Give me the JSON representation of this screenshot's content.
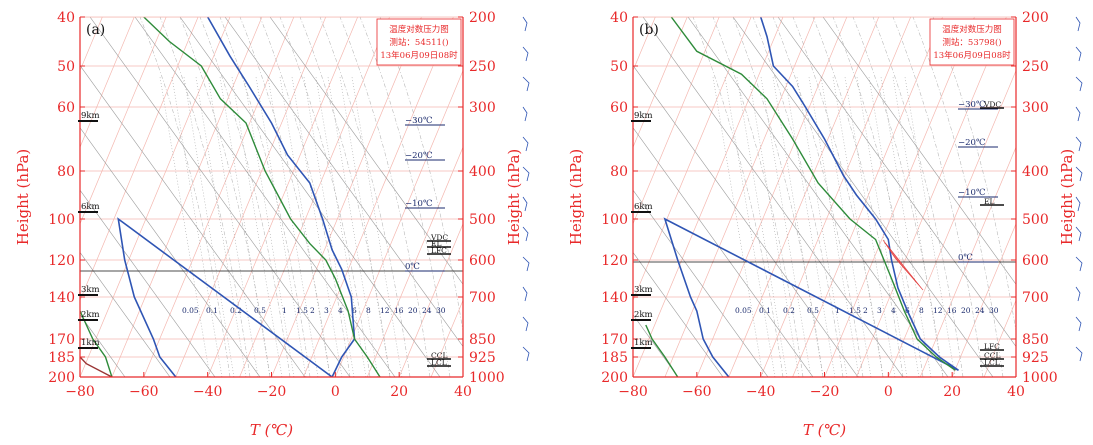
{
  "colors": {
    "axis": "#e8292a",
    "grid": "#f4b8b0",
    "temp": "#2f55b4",
    "dew": "#2e8b3a",
    "dry": "#9a3434",
    "moist": "#b8b8b8",
    "mixing": "#9a9a9a",
    "cape": "#e23b3b",
    "label_dark": "#1a2a6c",
    "black": "#111111"
  },
  "chart_data": [
    {
      "type": "line",
      "panel_label": "(a)",
      "info_box": [
        "温度对数压力图",
        "测站：54511()",
        "13年06月09日08时"
      ],
      "xlabel": "T (℃)",
      "ylabel_left": "Height (hPa)",
      "ylabel_right": "Height (hPa)",
      "xlim": [
        -80,
        40
      ],
      "ylim": [
        200,
        40
      ],
      "x_ticks": [
        "−80",
        "−60",
        "−40",
        "−20",
        "0",
        "20",
        "40"
      ],
      "y_ticks_left": [
        "40",
        "50",
        "60",
        "80",
        "100",
        "120",
        "140",
        "170",
        "185",
        "200"
      ],
      "y_ticks_right": [
        "200",
        "250",
        "300",
        "400",
        "500",
        "600",
        "700",
        "850",
        "925",
        "1000"
      ],
      "km_labels": [
        "9km",
        "6km",
        "3km",
        "2km",
        "1km"
      ],
      "iso_temp_labels": [
        "−30℃",
        "−20℃",
        "−10℃",
        "0℃"
      ],
      "level_labels": [
        "VDC",
        "EL",
        "LFC",
        "CCL",
        "LCL"
      ],
      "mixing_ratio_labels": [
        "0.05",
        "0.1",
        "0.2",
        "0.5",
        "1",
        "1.5",
        "2",
        "3",
        "4",
        "6",
        "8",
        "12",
        "16",
        "20",
        "24",
        "30"
      ],
      "series": [
        {
          "key": "temp",
          "points": [
            [
              -50,
              200
            ],
            [
              -55,
              185
            ],
            [
              -57,
              170
            ],
            [
              -63,
              140
            ],
            [
              -66,
              120
            ],
            [
              -68,
              100
            ],
            [
              -1,
              200
            ],
            [
              2,
              185
            ],
            [
              6,
              170
            ],
            [
              5,
              140
            ],
            [
              2,
              125
            ],
            [
              -1,
              115
            ],
            [
              -4,
              100
            ],
            [
              -8,
              85
            ],
            [
              -15,
              75
            ],
            [
              -20,
              65
            ],
            [
              -27,
              55
            ],
            [
              -33,
              48
            ],
            [
              -40,
              40
            ]
          ]
        },
        {
          "key": "dew",
          "points": [
            [
              -70,
              200
            ],
            [
              -72,
              185
            ],
            [
              -76,
              170
            ],
            [
              -80,
              150
            ]
          ]
        },
        {
          "key": "dew",
          "points": [
            [
              14,
              200
            ],
            [
              10,
              185
            ],
            [
              6,
              170
            ],
            [
              4,
              150
            ],
            [
              0,
              130
            ],
            [
              -3,
              120
            ],
            [
              -8,
              112
            ],
            [
              -14,
              100
            ],
            [
              -18,
              90
            ],
            [
              -22,
              80
            ],
            [
              -28,
              65
            ],
            [
              -36,
              58
            ],
            [
              -42,
              50
            ],
            [
              -52,
              45
            ],
            [
              -60,
              40
            ]
          ]
        },
        {
          "key": "dry",
          "points": [
            [
              -70,
              200
            ],
            [
              -78,
              190
            ],
            [
              -80,
              185
            ]
          ]
        }
      ]
    },
    {
      "type": "line",
      "panel_label": "(b)",
      "info_box": [
        "温度对数压力图",
        "测站：53798()",
        "13年06月09日08时"
      ],
      "xlabel": "T (℃)",
      "ylabel_left": "Height (hPa)",
      "ylabel_right": "Height (hPa)",
      "xlim": [
        -80,
        40
      ],
      "ylim": [
        200,
        40
      ],
      "x_ticks": [
        "−80",
        "−60",
        "−40",
        "−20",
        "0",
        "20",
        "40"
      ],
      "y_ticks_left": [
        "40",
        "50",
        "60",
        "80",
        "100",
        "120",
        "140",
        "170",
        "185",
        "200"
      ],
      "y_ticks_right": [
        "200",
        "250",
        "300",
        "400",
        "500",
        "600",
        "700",
        "850",
        "925",
        "1000"
      ],
      "km_labels": [
        "9km",
        "6km",
        "3km",
        "2km",
        "1km"
      ],
      "iso_temp_labels": [
        "−30℃",
        "−20℃",
        "−10℃",
        "0℃"
      ],
      "level_labels": [
        "VDC",
        "EL",
        "LFC",
        "CCL",
        "LCL"
      ],
      "mixing_ratio_labels": [
        "0.05",
        "0.1",
        "0.2",
        "0.5",
        "1",
        "1.5",
        "2",
        "3",
        "4",
        "6",
        "8",
        "12",
        "16",
        "20",
        "24",
        "30"
      ],
      "series": [
        {
          "key": "temp",
          "points": [
            [
              -50,
              200
            ],
            [
              -55,
              185
            ],
            [
              -58,
              170
            ],
            [
              -60,
              150
            ],
            [
              -62,
              140
            ],
            [
              -64,
              130
            ],
            [
              -66,
              120
            ],
            [
              -68,
              110
            ],
            [
              -70,
              100
            ],
            [
              22,
              195
            ],
            [
              16,
              185
            ],
            [
              10,
              170
            ],
            [
              6,
              150
            ],
            [
              3,
              135
            ],
            [
              1,
              120
            ],
            [
              0,
              110
            ],
            [
              -4,
              100
            ],
            [
              -10,
              90
            ],
            [
              -14,
              82
            ],
            [
              -20,
              70
            ],
            [
              -26,
              60
            ],
            [
              -30,
              55
            ],
            [
              -36,
              50
            ],
            [
              -38,
              44
            ],
            [
              -40,
              40
            ]
          ]
        },
        {
          "key": "dew",
          "points": [
            [
              -66,
              200
            ],
            [
              -70,
              185
            ],
            [
              -74,
              170
            ],
            [
              -76,
              160
            ]
          ]
        },
        {
          "key": "dew",
          "points": [
            [
              21,
              195
            ],
            [
              15,
              185
            ],
            [
              9,
              170
            ],
            [
              5,
              150
            ],
            [
              1,
              130
            ],
            [
              -4,
              110
            ],
            [
              -12,
              100
            ],
            [
              -22,
              85
            ],
            [
              -30,
              70
            ],
            [
              -38,
              58
            ],
            [
              -46,
              52
            ],
            [
              -60,
              47
            ],
            [
              -68,
              40
            ]
          ]
        }
      ]
    }
  ]
}
